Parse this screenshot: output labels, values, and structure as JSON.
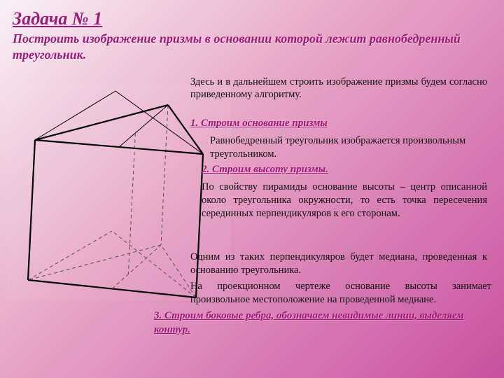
{
  "title": "Задача № 1",
  "subtitle": "Построить изображение призмы в основании которой лежит равнобедренный треугольник.",
  "para1": "Здесь и в дальнейшем строить изображение призмы будем согласно приведенному алгоритму.",
  "steps": {
    "s1": "1. Строим основание призмы",
    "s2": "2. Строим высоту призмы.",
    "s3": "3. Строим боковые ребра, обозначаем невидимые линии, выделяем контур."
  },
  "para2": "Равнобедренный треугольник изображается произвольным треугольником.",
  "para3": "По свойству пирамиды основание высоты – центр описанной около треугольника окружности, то есть точка пересечения серединных перпендикуляров к его сторонам.",
  "para4": "Одним из таких перпендикуляров будет медиана, проведенная к основанию треугольника.",
  "para5": "На проекционном чертеже основание высоты занимает произвольное местоположение на проведенной медиане.",
  "diagram": {
    "stroke_solid": "#000000",
    "stroke_dashed": "#555555",
    "outline_width": 2.2,
    "thin_width": 1,
    "dash": "5,4",
    "top": {
      "A": [
        40,
        80
      ],
      "B": [
        230,
        30
      ],
      "C": [
        280,
        100
      ]
    },
    "bot": {
      "A": [
        30,
        280
      ],
      "B": [
        220,
        230
      ],
      "C": [
        270,
        305
      ]
    },
    "top_inner_apex": [
      155,
      10
    ],
    "bot_inner_apex": [
      150,
      210
    ]
  }
}
